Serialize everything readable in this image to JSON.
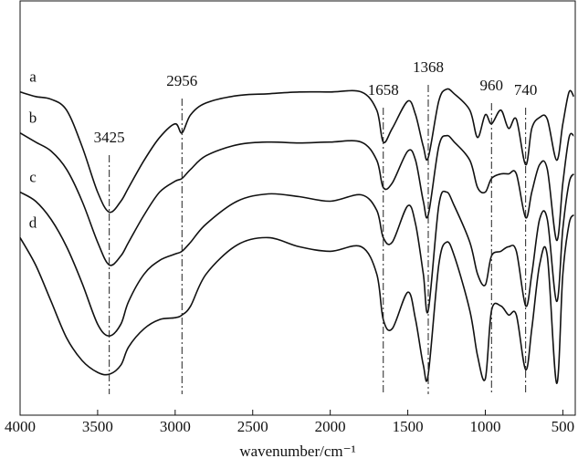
{
  "chart_data": {
    "type": "line",
    "x_label": "wavenumber/cm⁻¹",
    "xlim": [
      4000,
      420
    ],
    "xticks": [
      4000,
      3500,
      3000,
      2500,
      2000,
      1500,
      1000,
      500
    ],
    "ylim": [
      0,
      455
    ],
    "color": "#111111",
    "x": [
      4000,
      3900,
      3800,
      3700,
      3600,
      3500,
      3425,
      3350,
      3300,
      3200,
      3100,
      3000,
      2956,
      2900,
      2800,
      2600,
      2400,
      2200,
      2000,
      1800,
      1700,
      1658,
      1600,
      1500,
      1450,
      1400,
      1368,
      1300,
      1250,
      1200,
      1100,
      1050,
      1000,
      960,
      900,
      850,
      800,
      740,
      700,
      650,
      600,
      540,
      500,
      460,
      430
    ],
    "series": [
      {
        "name": "a",
        "values": [
          355,
          350,
          347,
          335,
          295,
          245,
          223,
          235,
          250,
          280,
          305,
          320,
          310,
          330,
          343,
          351,
          353,
          355,
          355,
          355,
          335,
          300,
          315,
          345,
          330,
          295,
          283,
          345,
          358,
          353,
          335,
          305,
          330,
          320,
          335,
          315,
          325,
          275,
          315,
          327,
          325,
          280,
          320,
          355,
          350
        ]
      },
      {
        "name": "b",
        "values": [
          310,
          300,
          290,
          270,
          235,
          190,
          165,
          175,
          190,
          220,
          245,
          257,
          260,
          270,
          285,
          297,
          300,
          299,
          300,
          300,
          280,
          250,
          255,
          290,
          280,
          235,
          220,
          295,
          307,
          300,
          280,
          250,
          245,
          260,
          265,
          265,
          265,
          217,
          245,
          275,
          270,
          192,
          255,
          305,
          307
        ]
      },
      {
        "name": "c",
        "values": [
          245,
          235,
          215,
          185,
          145,
          100,
          87,
          100,
          125,
          155,
          170,
          177,
          180,
          190,
          210,
          235,
          243,
          240,
          235,
          242,
          225,
          195,
          190,
          230,
          210,
          155,
          115,
          230,
          245,
          230,
          190,
          155,
          143,
          175,
          180,
          185,
          180,
          120,
          155,
          215,
          215,
          125,
          205,
          255,
          265
        ]
      },
      {
        "name": "d",
        "values": [
          195,
          165,
          125,
          85,
          60,
          47,
          45,
          55,
          75,
          95,
          105,
          107,
          110,
          120,
          155,
          187,
          195,
          185,
          180,
          185,
          155,
          105,
          95,
          135,
          105,
          55,
          45,
          165,
          190,
          175,
          115,
          65,
          40,
          115,
          120,
          110,
          110,
          50,
          95,
          165,
          175,
          35,
          155,
          210,
          220
        ]
      }
    ],
    "annotations": [
      {
        "text": "3425",
        "x": 3425
      },
      {
        "text": "2956",
        "x": 2956
      },
      {
        "text": "1658",
        "x": 1658
      },
      {
        "text": "1368",
        "x": 1368
      },
      {
        "text": "960",
        "x": 960
      },
      {
        "text": "740",
        "x": 740
      }
    ]
  }
}
